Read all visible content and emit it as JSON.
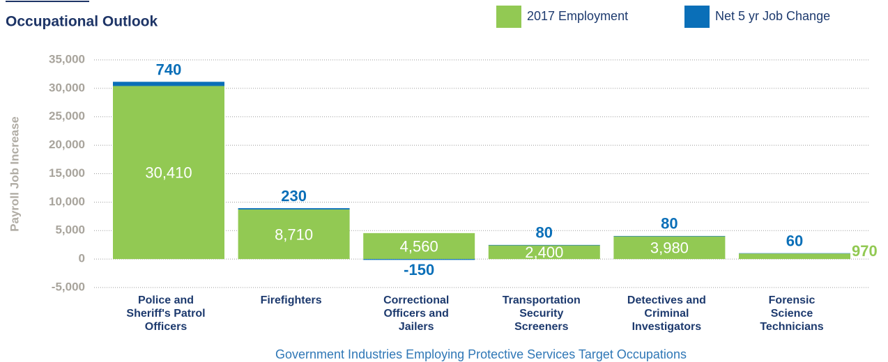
{
  "chart_data": {
    "type": "stacked_bar",
    "title": "Occupational Outlook",
    "x_label": "Government Industries Employing Protective Services Target Occupations",
    "y_label": "Payroll Job Increase",
    "categories": [
      "Police and Sheriff's Patrol Officers",
      "Firefighters",
      "Correctional Officers and Jailers",
      "Transportation Security Screeners",
      "Detectives and Criminal Investigators",
      "Forensic Science Technicians"
    ],
    "series": [
      {
        "name": "2017 Employment",
        "color": "#92c953",
        "values": [
          30410,
          8710,
          4560,
          2400,
          3980,
          970
        ],
        "value_labels": [
          "30,410",
          "8,710",
          "4,560",
          "2,400",
          "3,980",
          "970"
        ]
      },
      {
        "name": "Net 5 yr Job Change",
        "color": "#0a6fb8",
        "values": [
          740,
          230,
          -150,
          80,
          80,
          60
        ]
      }
    ],
    "ylim": [
      -5000,
      35000
    ],
    "yticks": [
      {
        "value": -5000,
        "label": "-5,000"
      },
      0,
      {
        "value": 5000,
        "label": "5,000"
      },
      {
        "value": 10000,
        "label": "10,000"
      },
      {
        "value": 15000,
        "label": "15,000"
      },
      {
        "value": 20000,
        "label": "20,000"
      },
      {
        "value": 25000,
        "label": "25,000"
      },
      {
        "value": 30000,
        "label": "30,000"
      },
      {
        "value": 35000,
        "label": "35,000"
      }
    ],
    "grid": true,
    "legend": "top-right"
  }
}
